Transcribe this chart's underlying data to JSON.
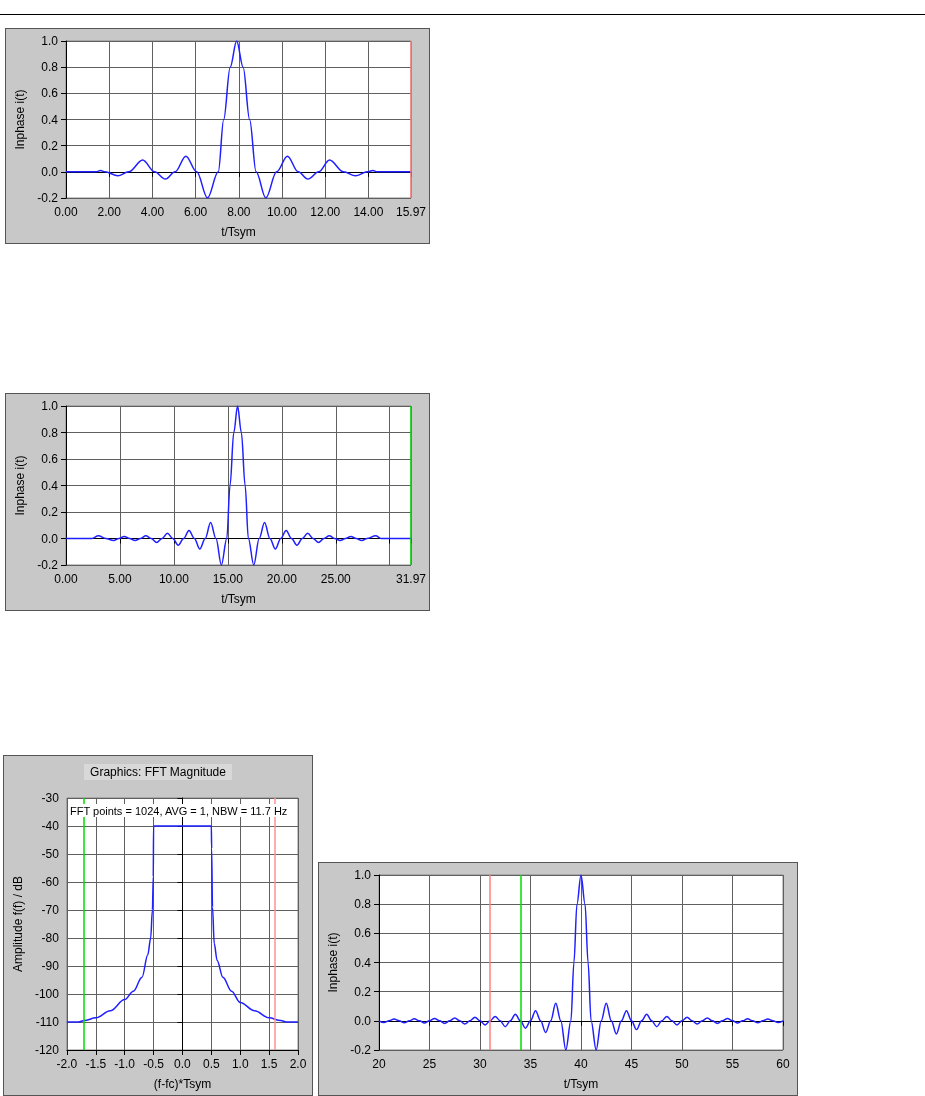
{
  "chart_data": [
    {
      "type": "line",
      "xlabel": "t/Tsym",
      "ylabel": "Inphase i(t)",
      "color": "#1f1fff",
      "marker": "none",
      "grid": true,
      "x": [
        0,
        1.4,
        1.6,
        1.8,
        2.4,
        2.9,
        3.55,
        4.1,
        4.6,
        5.05,
        5.55,
        6.05,
        6.55,
        7.05,
        7.3,
        7.6,
        7.9,
        8.2,
        8.5,
        8.8,
        9.25,
        9.75,
        10.25,
        10.75,
        11.2,
        11.7,
        12.2,
        12.85,
        13.4,
        13.95,
        14.2,
        14.4,
        15.97
      ],
      "values": [
        0,
        0,
        0.01,
        0,
        -0.03,
        0,
        0.09,
        0,
        -0.055,
        0,
        0.12,
        0,
        -0.2,
        0,
        0.4,
        0.8,
        1.0,
        0.8,
        0.4,
        0,
        -0.2,
        0,
        0.12,
        0,
        -0.055,
        0,
        0.09,
        0,
        -0.03,
        0,
        0.01,
        0,
        0
      ],
      "xlim": [
        0,
        15.97
      ],
      "xticks": [
        {
          "value": 0,
          "label": "0.00"
        },
        {
          "value": 2,
          "label": "2.00"
        },
        {
          "value": 4,
          "label": "4.00"
        },
        {
          "value": 6,
          "label": "6.00"
        },
        {
          "value": 8,
          "label": "8.00"
        },
        {
          "value": 10,
          "label": "10.00"
        },
        {
          "value": 12,
          "label": "12.00"
        },
        {
          "value": 14,
          "label": "14.00"
        },
        {
          "value": 15.97,
          "label": "15.97"
        }
      ],
      "ylim": [
        -0.2,
        1.0
      ],
      "yticks": [
        {
          "value": -0.2,
          "label": "-0.2"
        },
        {
          "value": 0,
          "label": "0.0"
        },
        {
          "value": 0.2,
          "label": "0.2"
        },
        {
          "value": 0.4,
          "label": "0.4"
        },
        {
          "value": 0.6,
          "label": "0.6"
        },
        {
          "value": 0.8,
          "label": "0.8"
        },
        {
          "value": 1,
          "label": "1.0"
        }
      ],
      "ref_lines": [
        {
          "axis": "x",
          "value": 15.97,
          "color": "#ff8080"
        }
      ]
    },
    {
      "type": "line",
      "xlabel": "t/Tsym",
      "ylabel": "Inphase i(t)",
      "color": "#1f1fff",
      "marker": "none",
      "grid": true,
      "x": [
        0,
        2.4,
        3.0,
        3.7,
        4.4,
        4.9,
        5.4,
        5.9,
        6.4,
        6.9,
        7.4,
        7.9,
        8.4,
        8.9,
        9.4,
        9.9,
        10.4,
        10.9,
        11.4,
        11.9,
        12.4,
        12.9,
        13.4,
        13.9,
        14.4,
        14.9,
        15.2,
        15.55,
        15.9,
        16.25,
        16.6,
        16.9,
        17.4,
        17.9,
        18.4,
        18.9,
        19.4,
        19.9,
        20.4,
        20.9,
        21.4,
        21.9,
        22.4,
        22.9,
        23.4,
        23.9,
        24.4,
        24.9,
        25.4,
        25.9,
        26.4,
        26.9,
        27.4,
        27.9,
        28.7,
        29.2,
        31.97
      ],
      "values": [
        0,
        0,
        0.02,
        0,
        -0.015,
        0,
        0.015,
        0,
        -0.015,
        0,
        0.02,
        0,
        -0.03,
        0,
        0.04,
        0,
        -0.05,
        0,
        0.06,
        0,
        -0.08,
        0,
        0.12,
        0,
        -0.2,
        0,
        0.4,
        0.8,
        1.0,
        0.8,
        0.4,
        0,
        -0.2,
        0,
        0.12,
        0,
        -0.08,
        0,
        0.06,
        0,
        -0.05,
        0,
        0.04,
        0,
        -0.03,
        0,
        0.02,
        0,
        -0.015,
        0,
        0.015,
        0,
        -0.015,
        0,
        0.02,
        0,
        0
      ],
      "xlim": [
        0,
        31.97
      ],
      "xticks": [
        {
          "value": 0,
          "label": "0.00"
        },
        {
          "value": 5,
          "label": "5.00"
        },
        {
          "value": 10,
          "label": "10.00"
        },
        {
          "value": 15,
          "label": "15.00"
        },
        {
          "value": 20,
          "label": "20.00"
        },
        {
          "value": 25,
          "label": "25.00"
        },
        {
          "value": 30,
          "label": null
        },
        {
          "value": 31.97,
          "label": "31.97"
        }
      ],
      "ylim": [
        -0.2,
        1.0
      ],
      "yticks": [
        {
          "value": -0.2,
          "label": "-0.2"
        },
        {
          "value": 0,
          "label": "0.0"
        },
        {
          "value": 0.2,
          "label": "0.2"
        },
        {
          "value": 0.4,
          "label": "0.4"
        },
        {
          "value": 0.6,
          "label": "0.6"
        },
        {
          "value": 0.8,
          "label": "0.8"
        },
        {
          "value": 1,
          "label": "1.0"
        }
      ],
      "ref_lines": [
        {
          "axis": "x",
          "value": 31.97,
          "color": "#00dd00"
        }
      ]
    },
    {
      "type": "line",
      "title": "Graphics: FFT Magnitude",
      "annotations": [
        "FFT points = 1024, AVG = 1, NBW = 11.7 Hz"
      ],
      "xlabel": "(f-fc)*Tsym",
      "ylabel": "Amplitude f(f) / dB",
      "color": "#1f1fff",
      "marker": "none",
      "grid": true,
      "x": [
        -2,
        -1.8,
        -1.7,
        -1.5,
        -1.25,
        -1.0,
        -0.85,
        -0.7,
        -0.6,
        -0.55,
        -0.52,
        -0.505,
        -0.5,
        0.5,
        0.505,
        0.52,
        0.55,
        0.6,
        0.7,
        0.85,
        1.0,
        1.25,
        1.5,
        1.7,
        1.8,
        2.0
      ],
      "values": [
        -110,
        -110,
        -109.5,
        -108.5,
        -106,
        -102,
        -99,
        -94,
        -86,
        -80,
        -70,
        -58,
        -40,
        -40,
        -48,
        -69,
        -82,
        -88,
        -94,
        -99,
        -103,
        -106,
        -108.5,
        -109.5,
        -110,
        -110
      ],
      "xlim": [
        -2,
        2
      ],
      "xticks": [
        {
          "value": -2,
          "label": "-2.0"
        },
        {
          "value": -1.5,
          "label": "-1.5"
        },
        {
          "value": -1,
          "label": "-1.0"
        },
        {
          "value": -0.5,
          "label": "-0.5"
        },
        {
          "value": 0,
          "label": "0.0"
        },
        {
          "value": 0.5,
          "label": "0.5"
        },
        {
          "value": 1,
          "label": "1.0"
        },
        {
          "value": 1.5,
          "label": "1.5"
        },
        {
          "value": 2,
          "label": "2.0"
        }
      ],
      "ylim": [
        -120,
        -30
      ],
      "yticks": [
        -120,
        -110,
        -100,
        -90,
        -80,
        -70,
        -60,
        -50,
        -40,
        -30
      ],
      "ref_lines": [
        {
          "axis": "x",
          "value": -1.7,
          "color": "#00dd00"
        },
        {
          "axis": "x",
          "value": 1.6,
          "color": "#ff9090"
        }
      ]
    },
    {
      "type": "line",
      "xlabel": "t/Tsym",
      "ylabel": "Inphase i(t)",
      "color": "#1f1fff",
      "marker": "none",
      "grid": true,
      "x": [
        20,
        20.5,
        21,
        21.5,
        22,
        22.5,
        23,
        23.5,
        24,
        24.5,
        25,
        25.5,
        26,
        26.5,
        27,
        27.5,
        28,
        28.5,
        29,
        29.5,
        30,
        30.5,
        31,
        31.5,
        32,
        32.5,
        33,
        33.5,
        34,
        34.5,
        35,
        35.5,
        36,
        36.5,
        37,
        37.5,
        38,
        38.5,
        39,
        39.3,
        39.6,
        40,
        40.4,
        40.7,
        41,
        41.5,
        42,
        42.5,
        43,
        43.5,
        44,
        44.5,
        45,
        45.5,
        46,
        46.5,
        47,
        47.5,
        48,
        48.5,
        49,
        49.5,
        50,
        50.5,
        51,
        51.5,
        52,
        52.5,
        53,
        53.5,
        54,
        54.5,
        55,
        55.5,
        56,
        56.5,
        57,
        57.5,
        58,
        58.5,
        59,
        59.5,
        60
      ],
      "values": [
        0,
        -0.012,
        0,
        0.012,
        0,
        -0.013,
        0,
        0.014,
        0,
        -0.015,
        0,
        0.016,
        0,
        -0.018,
        0,
        0.02,
        0,
        -0.022,
        0,
        0.025,
        0,
        -0.028,
        0,
        0.03,
        0,
        -0.04,
        0,
        0.045,
        0,
        -0.05,
        0,
        0.07,
        0,
        -0.08,
        0,
        0.12,
        0,
        -0.2,
        0,
        0.4,
        0.8,
        1.0,
        0.8,
        0.4,
        0,
        -0.2,
        0,
        0.12,
        0,
        -0.09,
        0,
        0.07,
        0,
        -0.06,
        0,
        0.045,
        0,
        -0.04,
        0,
        0.03,
        0,
        -0.028,
        0,
        0.025,
        0,
        -0.022,
        0,
        0.02,
        0,
        -0.018,
        0,
        0.016,
        0,
        -0.015,
        0,
        0.014,
        0,
        -0.013,
        0,
        0.012,
        0,
        -0.012,
        0
      ],
      "xlim": [
        20,
        60
      ],
      "xticks": [
        20,
        25,
        30,
        35,
        40,
        45,
        50,
        55,
        60
      ],
      "ylim": [
        -0.2,
        1.0
      ],
      "yticks": [
        {
          "value": -0.2,
          "label": "-0.2"
        },
        {
          "value": 0,
          "label": "0.0"
        },
        {
          "value": 0.2,
          "label": "0.2"
        },
        {
          "value": 0.4,
          "label": "0.4"
        },
        {
          "value": 0.6,
          "label": "0.6"
        },
        {
          "value": 0.8,
          "label": "0.8"
        },
        {
          "value": 1,
          "label": "1.0"
        }
      ],
      "ref_lines": [
        {
          "axis": "x",
          "value": 31,
          "color": "#ff8080"
        },
        {
          "axis": "x",
          "value": 34,
          "color": "#00dd00"
        }
      ]
    }
  ]
}
